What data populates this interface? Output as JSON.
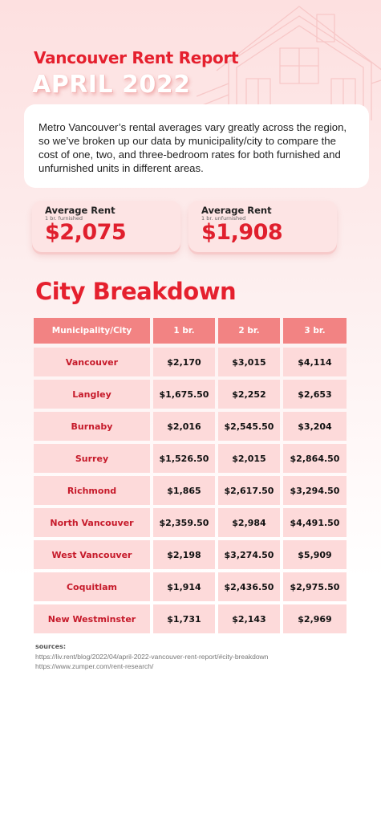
{
  "header": {
    "title": "Vancouver Rent Report",
    "subtitle": "APRIL 2022"
  },
  "intro": {
    "text": "Metro Vancouver’s rental averages vary greatly across the region, so we’ve broken up our data by municipality/city to compare the cost of one, two, and three-bedroom rates for both furnished and unfurnished units in different areas."
  },
  "stats": [
    {
      "label": "Average Rent",
      "sub": "1 br. furnished",
      "value": "$2,075"
    },
    {
      "label": "Average Rent",
      "sub": "1 br. unfurnished",
      "value": "$1,908"
    }
  ],
  "breakdown": {
    "title": "City Breakdown",
    "headers": [
      "Municipality/City",
      "1 br.",
      "2 br.",
      "3 br."
    ],
    "rows": [
      [
        "Vancouver",
        "$2,170",
        "$3,015",
        "$4,114"
      ],
      [
        "Langley",
        "$1,675.50",
        "$2,252",
        "$2,653"
      ],
      [
        "Burnaby",
        "$2,016",
        "$2,545.50",
        "$3,204"
      ],
      [
        "Surrey",
        "$1,526.50",
        "$2,015",
        "$2,864.50"
      ],
      [
        "Richmond",
        "$1,865",
        "$2,617.50",
        "$3,294.50"
      ],
      [
        "North Vancouver",
        "$2,359.50",
        "$2,984",
        "$4,491.50"
      ],
      [
        "West Vancouver",
        "$2,198",
        "$3,274.50",
        "$5,909"
      ],
      [
        "Coquitlam",
        "$1,914",
        "$2,436.50",
        "$2,975.50"
      ],
      [
        "New Westminster",
        "$1,731",
        "$2,143",
        "$2,969"
      ]
    ]
  },
  "sources": {
    "label": "sources:",
    "links": [
      "https://liv.rent/blog/2022/04/april-2022-vancouver-rent-report/#city-breakdown",
      "https://www.zumper.com/rent-research/"
    ]
  },
  "colors": {
    "accent_red": "#e5202e",
    "header_cell": "#f28383",
    "body_cell": "#fddada",
    "card_pink": "#fde4e4"
  },
  "icons": [
    "house-outline-illustration"
  ]
}
